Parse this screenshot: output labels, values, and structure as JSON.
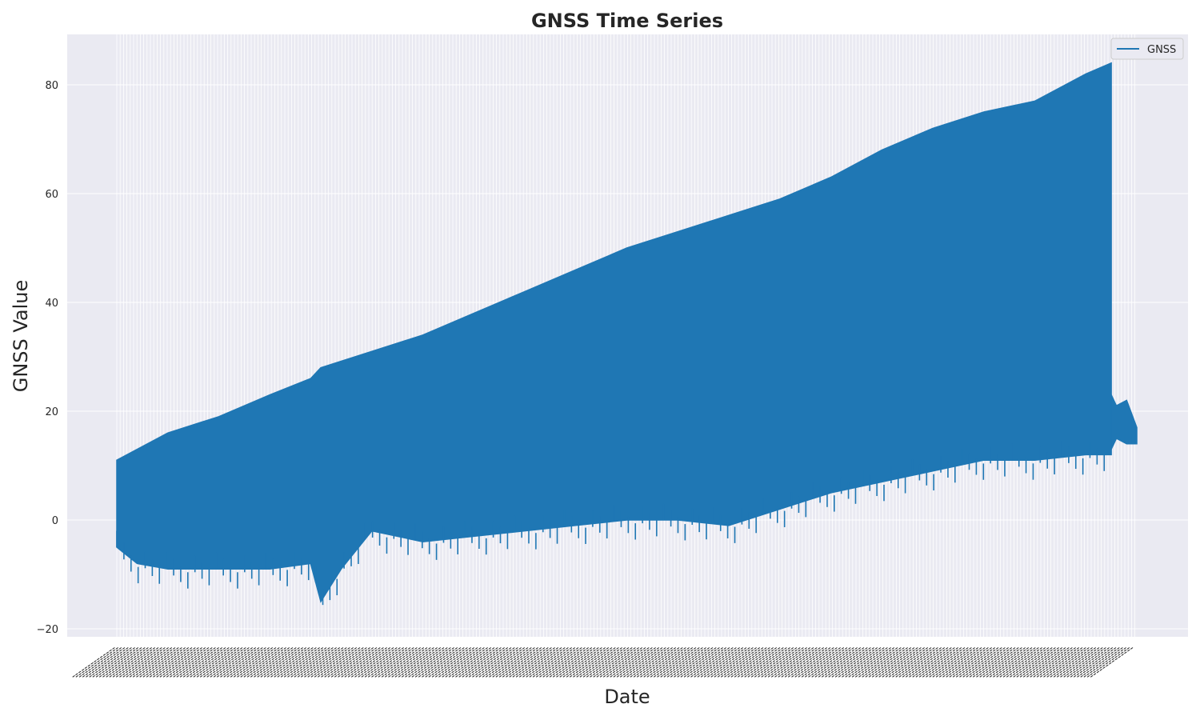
{
  "chart_data": {
    "type": "line",
    "title": "GNSS Time Series",
    "xlabel": "Date",
    "ylabel": "GNSS Value",
    "ylim": [
      -21,
      89
    ],
    "yticks": [
      -20,
      0,
      20,
      40,
      60,
      80
    ],
    "ytick_labels": [
      "−20",
      "0",
      "20",
      "40",
      "60",
      "80"
    ],
    "grid": true,
    "legend_position": "top-right",
    "background_color": "#eaeaf2",
    "series": [
      {
        "name": "GNSS",
        "color": "#1f77b4",
        "upper_envelope_x_frac": [
          0.0,
          0.05,
          0.1,
          0.15,
          0.19,
          0.2,
          0.25,
          0.3,
          0.35,
          0.4,
          0.45,
          0.5,
          0.55,
          0.6,
          0.65,
          0.7,
          0.75,
          0.8,
          0.85,
          0.9,
          0.95,
          0.975
        ],
        "upper_envelope": [
          11,
          16,
          19,
          23,
          26,
          28,
          31,
          34,
          38,
          42,
          46,
          50,
          53,
          56,
          59,
          63,
          68,
          72,
          75,
          77,
          82,
          84
        ],
        "lower_envelope_x_frac": [
          0.0,
          0.02,
          0.05,
          0.1,
          0.15,
          0.19,
          0.2,
          0.22,
          0.25,
          0.3,
          0.35,
          0.4,
          0.45,
          0.5,
          0.55,
          0.6,
          0.65,
          0.7,
          0.75,
          0.8,
          0.85,
          0.9,
          0.95,
          0.975
        ],
        "lower_envelope": [
          -5,
          -8,
          -9,
          -9,
          -9,
          -8,
          -15,
          -9,
          -2,
          -4,
          -3,
          -2,
          -1,
          0,
          0,
          -1,
          2,
          5,
          7,
          9,
          11,
          11,
          12,
          12
        ],
        "tail_x_frac": [
          0.975,
          0.98,
          0.99,
          1.0
        ],
        "tail_upper": [
          23,
          21,
          22,
          17
        ],
        "tail_lower": [
          13,
          15,
          14,
          14
        ]
      }
    ],
    "legend": [
      "GNSS"
    ]
  }
}
